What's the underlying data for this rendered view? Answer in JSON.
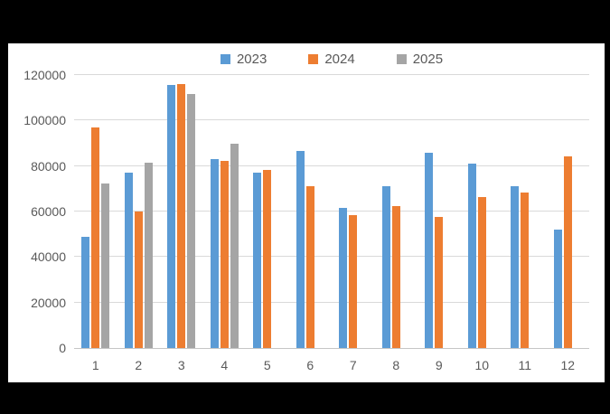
{
  "chart_data": {
    "type": "bar",
    "title": "",
    "xlabel": "",
    "ylabel": "",
    "categories": [
      "1",
      "2",
      "3",
      "4",
      "5",
      "6",
      "7",
      "8",
      "9",
      "10",
      "11",
      "12"
    ],
    "series": [
      {
        "name": "2023",
        "color": "#5B9BD5",
        "values": [
          48800,
          77200,
          115600,
          83200,
          77200,
          86500,
          61400,
          71100,
          85700,
          81200,
          71000,
          52100
        ]
      },
      {
        "name": "2024",
        "color": "#ED7D31",
        "values": [
          97100,
          60000,
          116000,
          82300,
          78200,
          71200,
          58300,
          62400,
          57700,
          66300,
          68400,
          84100
        ]
      },
      {
        "name": "2025",
        "color": "#A5A5A5",
        "values": [
          72300,
          81600,
          111600,
          90000,
          null,
          null,
          null,
          null,
          null,
          null,
          null,
          null
        ]
      }
    ],
    "ylim": [
      0,
      120000
    ],
    "ytick_labels": [
      "0",
      "20000",
      "40000",
      "60000",
      "80000",
      "100000",
      "120000"
    ],
    "grid": true,
    "legend_position": "top",
    "background": "#ffffff",
    "page_background": "#000000",
    "text_color": "#595959",
    "gridline_color": "#d9d9d9"
  }
}
